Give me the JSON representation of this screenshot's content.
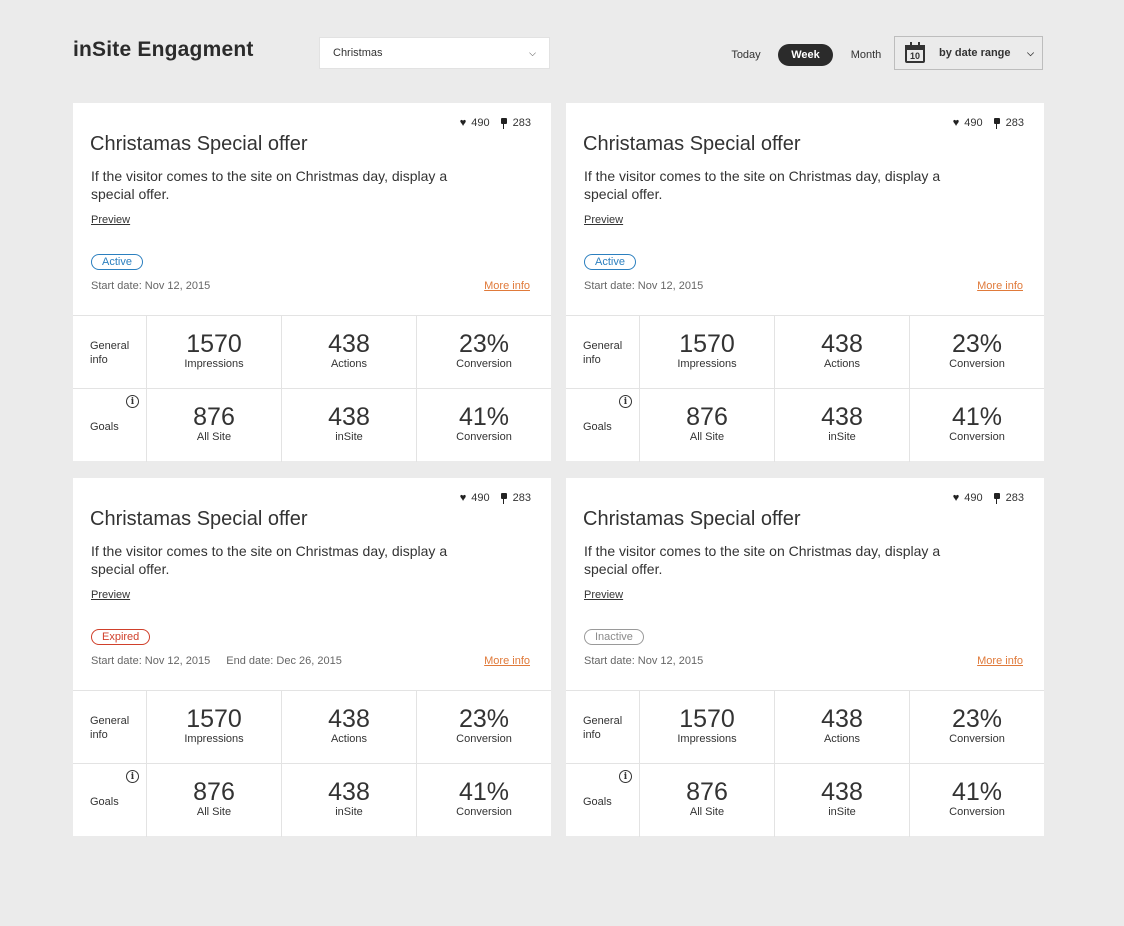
{
  "header": {
    "title": "inSite Engagment",
    "campaign_select": {
      "value": "Christmas"
    },
    "period_tabs": [
      "Today",
      "Week",
      "Month"
    ],
    "active_tab": "Week",
    "date_range": {
      "label": "by date range",
      "icon_number": "10"
    }
  },
  "icons": {
    "heart": "heart-icon",
    "pin": "pin-icon",
    "info": "info-icon",
    "calendar": "calendar-icon",
    "chevron": "chevron-down-icon"
  },
  "colors": {
    "active": "#2b7fbf",
    "expired": "#d0402b",
    "inactive": "#9a9a9a",
    "link_orange": "#e07a3a"
  },
  "cards": [
    {
      "likes": "490",
      "pins": "283",
      "title": "Christamas Special offer",
      "description": "If the visitor comes to the site on Christmas day, display a special offer.",
      "preview_label": "Preview",
      "status": "Active",
      "status_type": "active",
      "start_date": "Start date: Nov 12, 2015",
      "end_date": "",
      "more_info_label": "More info",
      "general_label": "General info",
      "goals_label": "Goals",
      "general": [
        {
          "value": "1570",
          "label": "Impressions"
        },
        {
          "value": "438",
          "label": "Actions"
        },
        {
          "value": "23%",
          "label": "Conversion"
        }
      ],
      "goals": [
        {
          "value": "876",
          "label": "All Site"
        },
        {
          "value": "438",
          "label": "inSite"
        },
        {
          "value": "41%",
          "label": "Conversion"
        }
      ]
    },
    {
      "likes": "490",
      "pins": "283",
      "title": "Christamas Special offer",
      "description": "If the visitor comes to the site on Christmas day, display a special offer.",
      "preview_label": "Preview",
      "status": "Active",
      "status_type": "active",
      "start_date": "Start date: Nov 12, 2015",
      "end_date": "",
      "more_info_label": "More info",
      "general_label": "General info",
      "goals_label": "Goals",
      "general": [
        {
          "value": "1570",
          "label": "Impressions"
        },
        {
          "value": "438",
          "label": "Actions"
        },
        {
          "value": "23%",
          "label": "Conversion"
        }
      ],
      "goals": [
        {
          "value": "876",
          "label": "All Site"
        },
        {
          "value": "438",
          "label": "inSite"
        },
        {
          "value": "41%",
          "label": "Conversion"
        }
      ]
    },
    {
      "likes": "490",
      "pins": "283",
      "title": "Christamas Special offer",
      "description": "If the visitor comes to the site on Christmas day, display a special offer.",
      "preview_label": "Preview",
      "status": "Expired",
      "status_type": "expired",
      "start_date": "Start date: Nov 12, 2015",
      "end_date": "End date: Dec 26, 2015",
      "more_info_label": "More info",
      "general_label": "General info",
      "goals_label": "Goals",
      "general": [
        {
          "value": "1570",
          "label": "Impressions"
        },
        {
          "value": "438",
          "label": "Actions"
        },
        {
          "value": "23%",
          "label": "Conversion"
        }
      ],
      "goals": [
        {
          "value": "876",
          "label": "All Site"
        },
        {
          "value": "438",
          "label": "inSite"
        },
        {
          "value": "41%",
          "label": "Conversion"
        }
      ]
    },
    {
      "likes": "490",
      "pins": "283",
      "title": "Christamas Special offer",
      "description": "If the visitor comes to the site on Christmas day, display a special offer.",
      "preview_label": "Preview",
      "status": "Inactive",
      "status_type": "inactive",
      "start_date": "Start date: Nov 12, 2015",
      "end_date": "",
      "more_info_label": "More info",
      "general_label": "General info",
      "goals_label": "Goals",
      "general": [
        {
          "value": "1570",
          "label": "Impressions"
        },
        {
          "value": "438",
          "label": "Actions"
        },
        {
          "value": "23%",
          "label": "Conversion"
        }
      ],
      "goals": [
        {
          "value": "876",
          "label": "All Site"
        },
        {
          "value": "438",
          "label": "inSite"
        },
        {
          "value": "41%",
          "label": "Conversion"
        }
      ]
    }
  ]
}
